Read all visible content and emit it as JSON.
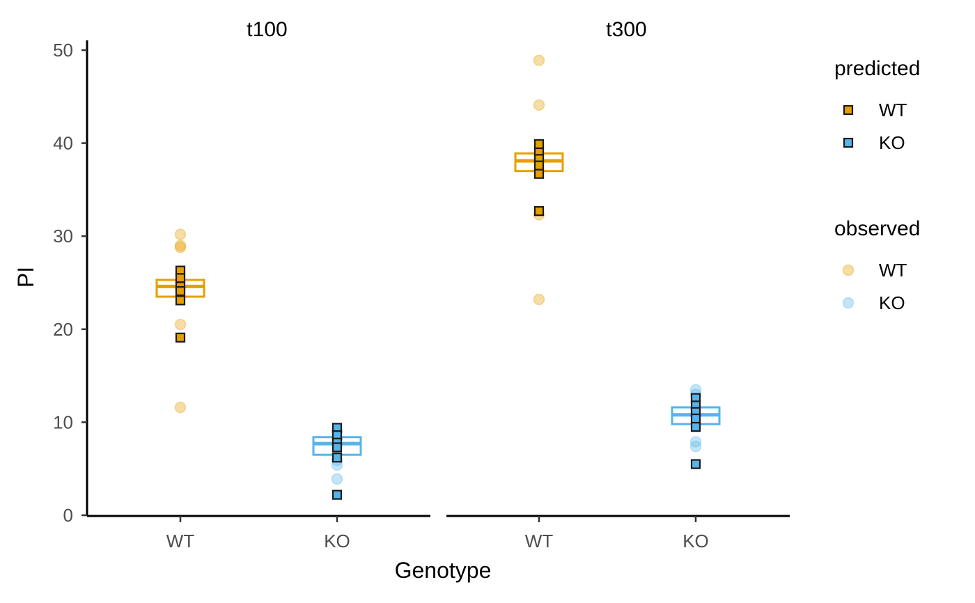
{
  "chart_data": {
    "type": "scatter",
    "xlabel": "Genotype",
    "ylabel": "PI",
    "ylim": [
      0,
      50
    ],
    "yticks": [
      0,
      10,
      20,
      30,
      40,
      50
    ],
    "categories": [
      "WT",
      "KO"
    ],
    "grid": false,
    "colors": {
      "WT": "#E69F00",
      "KO": "#56B4E9",
      "outline": "#1a1a1a"
    },
    "panels": [
      {
        "label": "t100",
        "groups": [
          {
            "genotype": "WT",
            "observed": [
              30.2,
              29.0,
              28.8,
              20.5,
              11.6
            ],
            "predicted": [
              26.3,
              25.5,
              24.6,
              24.1,
              23.1,
              19.1
            ],
            "mean": 24.6,
            "interval": [
              23.5,
              25.3
            ]
          },
          {
            "genotype": "KO",
            "observed": [
              9.0,
              8.2,
              5.9,
              5.4,
              3.9
            ],
            "predicted": [
              9.4,
              8.6,
              7.8,
              7.3,
              6.2,
              2.2
            ],
            "mean": 7.7,
            "interval": [
              6.5,
              8.4
            ]
          }
        ]
      },
      {
        "label": "t300",
        "groups": [
          {
            "genotype": "WT",
            "observed": [
              48.9,
              44.1,
              32.3,
              23.2
            ],
            "predicted": [
              39.9,
              39.0,
              38.3,
              37.6,
              36.7,
              32.7
            ],
            "mean": 38.1,
            "interval": [
              37.0,
              38.9
            ]
          },
          {
            "genotype": "KO",
            "observed": [
              13.5,
              13.0,
              7.9,
              7.4
            ],
            "predicted": [
              12.6,
              11.8,
              11.1,
              10.4,
              9.5,
              5.5
            ],
            "mean": 10.8,
            "interval": [
              9.8,
              11.6
            ]
          }
        ]
      }
    ],
    "legend": {
      "placement": "right",
      "groups": [
        {
          "title": "predicted",
          "shape": "square",
          "entries": [
            "WT",
            "KO"
          ]
        },
        {
          "title": "observed",
          "shape": "circle",
          "entries": [
            "WT",
            "KO"
          ]
        }
      ]
    }
  }
}
